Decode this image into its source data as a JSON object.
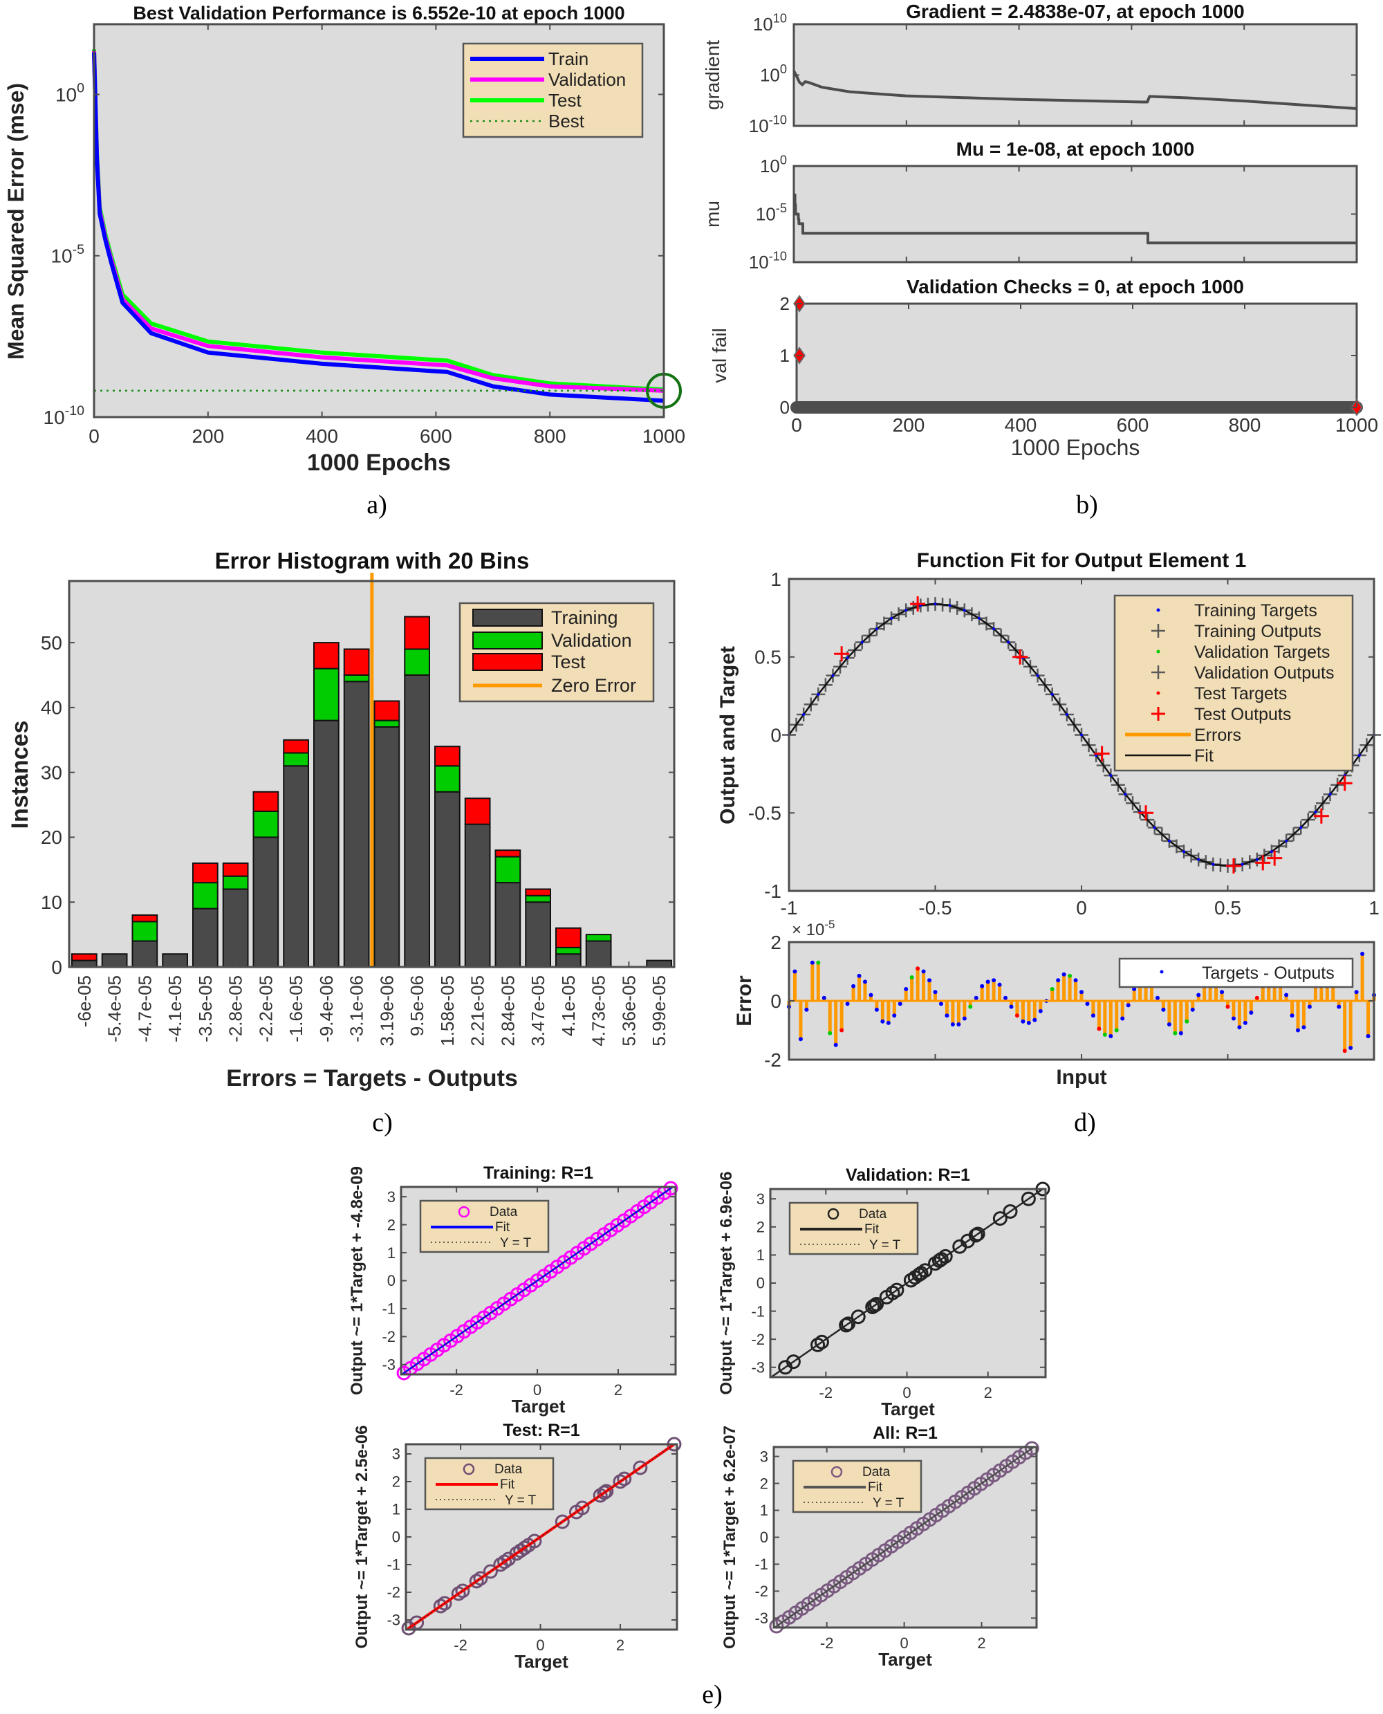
{
  "panel_labels": {
    "a": "a)",
    "b": "b)",
    "c": "c)",
    "d": "d)",
    "e": "e)"
  },
  "colors": {
    "axes_background": "#dcdcdc",
    "legend_background": "#f2deb6",
    "train": "#0000ff",
    "validation": "#ff00ff",
    "test": "#00ff00",
    "best": "#1a8c1a",
    "bar_training": "#4a4a4a",
    "bar_validation": "#00cc00",
    "bar_test": "#ff0000",
    "zero_error": "#ff9900",
    "marker_red": "#ff0000"
  },
  "chart_data": [
    {
      "id": "performance",
      "type": "line",
      "title": "Best Validation Performance is 6.552e-10 at epoch 1000",
      "xlabel": "1000 Epochs",
      "ylabel": "Mean Squared Error  (mse)",
      "yscale": "log",
      "xlim": [
        0,
        1000
      ],
      "ylim": [
        1e-10,
        150
      ],
      "grid": false,
      "xticks": [
        0,
        200,
        400,
        600,
        800,
        1000
      ],
      "yticks": [
        {
          "value": 1,
          "base": "10",
          "exp": "0"
        },
        {
          "value": 1e-05,
          "base": "10",
          "exp": "-5"
        },
        {
          "value": 1e-10,
          "base": "10",
          "exp": "-10"
        }
      ],
      "legend": {
        "position": "top-right",
        "entries": [
          "Train",
          "Validation",
          "Test",
          "Best"
        ]
      },
      "series": [
        {
          "name": "Train",
          "color": "#0000ff",
          "x": [
            0,
            5,
            10,
            20,
            30,
            50,
            100,
            200,
            400,
            620,
            700,
            800,
            1000
          ],
          "y": [
            20,
            0.01,
            0.0002,
            3e-05,
            6.3e-06,
            3.5e-07,
            4e-08,
            1e-08,
            4.5e-09,
            2.5e-09,
            9e-10,
            5e-10,
            3.2e-10
          ]
        },
        {
          "name": "Validation",
          "color": "#ff00ff",
          "x": [
            0,
            5,
            10,
            20,
            30,
            50,
            100,
            200,
            400,
            620,
            700,
            800,
            1000
          ],
          "y": [
            22,
            0.012,
            0.00025,
            3.5e-05,
            8e-06,
            4.5e-07,
            5.6e-08,
            1.6e-08,
            7.1e-09,
            4e-09,
            1.6e-09,
            9e-10,
            6.552e-10
          ]
        },
        {
          "name": "Test",
          "color": "#00ff00",
          "x": [
            0,
            5,
            10,
            20,
            30,
            50,
            100,
            200,
            400,
            620,
            700,
            800,
            1000
          ],
          "y": [
            25,
            0.016,
            0.00032,
            4.5e-05,
            1e-05,
            6.3e-07,
            8e-08,
            2.2e-08,
            1e-08,
            5.6e-09,
            2e-09,
            1.1e-09,
            7.1e-10
          ]
        }
      ],
      "best": {
        "name": "Best",
        "epoch": 1000,
        "value": 6.552e-10
      }
    },
    {
      "id": "gradient",
      "type": "line",
      "title": "Gradient = 2.4838e-07, at epoch 1000",
      "ylabel": "gradient",
      "yscale": "log",
      "xlim": [
        0,
        1000
      ],
      "ylim": [
        1e-10,
        10000000000.0
      ],
      "xticks": [
        0,
        200,
        400,
        600,
        800,
        1000
      ],
      "yticks": [
        {
          "value": 10000000000.0,
          "base": "10",
          "exp": "10"
        },
        {
          "value": 1,
          "base": "10",
          "exp": "0"
        },
        {
          "value": 1e-10,
          "base": "10",
          "exp": "-10"
        }
      ],
      "series": [
        {
          "x": [
            0,
            3,
            6,
            10,
            15,
            20,
            25,
            50,
            100,
            200,
            400,
            620,
            628,
            632,
            700,
            800,
            1000
          ],
          "y": [
            6.3,
            1.6,
            0.32,
            0.04,
            0.0126,
            0.05,
            0.04,
            0.004,
            0.0005,
            8e-05,
            1.6e-05,
            5e-06,
            5e-06,
            6.3e-05,
            3.2e-05,
            8e-06,
            2.4838e-07
          ]
        }
      ]
    },
    {
      "id": "mu",
      "type": "line",
      "title": "Mu = 1e-08, at epoch 1000",
      "ylabel": "mu",
      "yscale": "log",
      "xlim": [
        0,
        1000
      ],
      "ylim": [
        1e-10,
        1
      ],
      "xticks": [
        0,
        200,
        400,
        600,
        800,
        1000
      ],
      "yticks": [
        {
          "value": 1,
          "base": "10",
          "exp": "0"
        },
        {
          "value": 1e-05,
          "base": "10",
          "exp": "-5"
        },
        {
          "value": 1e-10,
          "base": "10",
          "exp": "-10"
        }
      ],
      "series": [
        {
          "x": [
            0,
            2,
            3,
            5,
            6,
            8,
            9,
            15,
            16,
            628,
            629,
            1000
          ],
          "y": [
            0.001,
            0.0001,
            1e-05,
            1e-05,
            1e-05,
            3e-06,
            1e-06,
            1e-06,
            1e-07,
            1e-07,
            1e-08,
            1e-08
          ]
        }
      ]
    },
    {
      "id": "validation_checks",
      "type": "scatter",
      "title": "Validation Checks = 0, at epoch 1000",
      "xlabel": "1000 Epochs",
      "ylabel": "val fail",
      "xlim": [
        0,
        1000
      ],
      "ylim": [
        0,
        2
      ],
      "xticks": [
        0,
        200,
        400,
        600,
        800,
        1000
      ],
      "yticks": [
        0,
        1,
        2
      ],
      "baseline": {
        "from_epoch": 0,
        "to_epoch": 1000,
        "value": 0
      },
      "markers": [
        {
          "epoch": 5,
          "value": 2
        },
        {
          "epoch": 5,
          "value": 1
        },
        {
          "epoch": 1000,
          "value": 0
        }
      ]
    },
    {
      "id": "error_histogram",
      "type": "bar",
      "stacked": true,
      "title": "Error Histogram with 20 Bins",
      "xlabel": "Errors = Targets - Outputs",
      "ylabel": "Instances",
      "ylim": [
        0,
        59.5
      ],
      "yticks": [
        0,
        10,
        20,
        30,
        40,
        50
      ],
      "categories": [
        "-6e-05",
        "-5.4e-05",
        "-4.7e-05",
        "-4.1e-05",
        "-3.5e-05",
        "-2.8e-05",
        "-2.2e-05",
        "-1.6e-05",
        "-9.4e-06",
        "-3.1e-06",
        "3.19e-06",
        "9.5e-06",
        "1.58e-05",
        "2.21e-05",
        "2.84e-05",
        "3.47e-05",
        "4.1e-05",
        "4.73e-05",
        "5.36e-05",
        "5.99e-05"
      ],
      "bin_centers_range": [
        -6e-05,
        5.99e-05
      ],
      "series": [
        {
          "name": "Training",
          "color": "#4a4a4a",
          "values": [
            1,
            2,
            4,
            2,
            9,
            12,
            20,
            31,
            38,
            44,
            37,
            45,
            27,
            22,
            13,
            10,
            2,
            4,
            0,
            1
          ]
        },
        {
          "name": "Validation",
          "color": "#00cc00",
          "values": [
            0,
            0,
            3,
            0,
            4,
            2,
            4,
            2,
            8,
            1,
            1,
            4,
            4,
            0,
            4,
            1,
            1,
            1,
            0,
            0
          ]
        },
        {
          "name": "Test",
          "color": "#ff0000",
          "values": [
            1,
            0,
            1,
            0,
            3,
            2,
            3,
            2,
            4,
            4,
            3,
            5,
            3,
            4,
            1,
            1,
            3,
            0,
            0,
            0
          ]
        }
      ],
      "zero_error": {
        "name": "Zero Error",
        "value": 0
      },
      "legend": {
        "position": "top-right",
        "entries": [
          "Training",
          "Validation",
          "Test",
          "Zero Error"
        ]
      }
    },
    {
      "id": "function_fit",
      "type": "line",
      "title": "Function Fit for Output Element 1",
      "ylabel": "Output and Target",
      "xlim": [
        -1,
        1
      ],
      "ylim": [
        -1,
        1
      ],
      "xticks": [
        -1,
        -0.5,
        0,
        0.5,
        1
      ],
      "yticks": [
        -1,
        -0.5,
        0,
        0.5,
        1
      ],
      "fit": {
        "x": [
          -1,
          -0.95,
          -0.9,
          -0.85,
          -0.8,
          -0.75,
          -0.7,
          -0.65,
          -0.6,
          -0.55,
          -0.5,
          -0.45,
          -0.4,
          -0.35,
          -0.3,
          -0.25,
          -0.2,
          -0.15,
          -0.1,
          -0.05,
          0,
          0.05,
          0.1,
          0.15,
          0.2,
          0.25,
          0.3,
          0.35,
          0.4,
          0.45,
          0.5,
          0.55,
          0.6,
          0.65,
          0.7,
          0.75,
          0.8,
          0.85,
          0.9,
          0.95,
          1
        ],
        "y": [
          0,
          0.131,
          0.26,
          0.381,
          0.494,
          0.594,
          0.68,
          0.748,
          0.799,
          0.83,
          0.84,
          0.83,
          0.799,
          0.748,
          0.68,
          0.594,
          0.494,
          0.381,
          0.26,
          0.131,
          0,
          -0.131,
          -0.26,
          -0.381,
          -0.494,
          -0.594,
          -0.68,
          -0.748,
          -0.799,
          -0.83,
          -0.84,
          -0.83,
          -0.799,
          -0.748,
          -0.68,
          -0.594,
          -0.494,
          -0.381,
          -0.26,
          -0.131,
          0
        ]
      },
      "test_outputs": {
        "x": [
          -0.82,
          -0.56,
          -0.21,
          0.07,
          0.22,
          0.52,
          0.62,
          0.66,
          0.82,
          0.9
        ],
        "y": [
          0.52,
          0.84,
          0.5,
          -0.12,
          -0.5,
          -0.84,
          -0.82,
          -0.79,
          -0.52,
          -0.31
        ]
      },
      "legend": {
        "position": "top-right",
        "entries": [
          "Training Targets",
          "Training Outputs",
          "Validation Targets",
          "Validation Outputs",
          "Test Targets",
          "Test Outputs",
          "Errors",
          "Fit"
        ]
      }
    },
    {
      "id": "fit_error",
      "type": "bar",
      "xlabel": "Input",
      "ylabel": "Error",
      "exponent_prefix": "× 10",
      "exponent": "-5",
      "xlim": [
        -1,
        1
      ],
      "ylim": [
        -2,
        2
      ],
      "yticks": [
        -2,
        0,
        2
      ],
      "values_e5": [
        -0.2,
        1.0,
        -1.3,
        -0.3,
        1.3,
        1.3,
        0.1,
        -1.1,
        -1.5,
        -1.0,
        -0.1,
        0.5,
        0.85,
        0.65,
        0.2,
        -0.3,
        -0.7,
        -0.75,
        -0.5,
        -0.1,
        0.4,
        0.8,
        1.1,
        1.0,
        0.7,
        0.3,
        -0.1,
        -0.5,
        -0.8,
        -0.8,
        -0.6,
        -0.2,
        0.1,
        0.5,
        0.65,
        0.7,
        0.55,
        0.1,
        -0.2,
        -0.5,
        -0.7,
        -0.75,
        -0.65,
        -0.35,
        0.0,
        0.4,
        0.7,
        0.9,
        0.85,
        0.7,
        0.3,
        -0.1,
        -0.5,
        -0.95,
        -1.15,
        -1.2,
        -1.0,
        -0.6,
        -0.15,
        0.4,
        0.6,
        0.6,
        0.6,
        0.1,
        -0.3,
        -0.8,
        -1.1,
        -1.1,
        -0.7,
        -0.3,
        0.2,
        0.5,
        0.5,
        0.5,
        0.3,
        -0.2,
        -0.6,
        -0.9,
        -0.75,
        -0.4,
        0.1,
        0.5,
        0.5,
        0.5,
        0.5,
        0.2,
        -0.5,
        -1.0,
        -0.9,
        -0.2,
        0.5,
        0.5,
        0.5,
        0.5,
        -0.2,
        -1.7,
        -1.6,
        0.3,
        1.6,
        -1.2,
        0.2
      ],
      "validation_indices": [
        5,
        7,
        21,
        31,
        45,
        48,
        54,
        56,
        66,
        68
      ],
      "test_indices": [
        9,
        22,
        39,
        53,
        75,
        80,
        95
      ],
      "legend": {
        "position": "top-right",
        "entries": [
          "Targets - Outputs"
        ]
      }
    },
    {
      "id": "regression_training",
      "type": "scatter",
      "title": "Training: R=1",
      "xlabel": "Target",
      "ylabel": "Output ~= 1*Target + -4.8e-09",
      "marker_color": "#ff00ff",
      "fit_color": "#0000ff",
      "xlim": [
        -3.37,
        3.42
      ],
      "ylim": [
        -3.35,
        3.35
      ],
      "xticks": [
        -2,
        0,
        2
      ],
      "yticks": [
        -3,
        -2,
        -1,
        0,
        1,
        2,
        3
      ],
      "targets": [
        -3.3,
        -3.135,
        -2.97,
        -2.805,
        -2.64,
        -2.475,
        -2.31,
        -2.145,
        -1.98,
        -1.815,
        -1.65,
        -1.485,
        -1.32,
        -1.155,
        -0.99,
        -0.825,
        -0.66,
        -0.495,
        -0.33,
        -0.165,
        0,
        0.165,
        0.33,
        0.495,
        0.66,
        0.825,
        0.99,
        1.155,
        1.32,
        1.485,
        1.65,
        1.815,
        1.98,
        2.145,
        2.31,
        2.475,
        2.64,
        2.805,
        2.97,
        3.135,
        3.3
      ],
      "legend": {
        "entries": [
          "Data",
          "Fit",
          "Y = T"
        ]
      }
    },
    {
      "id": "regression_validation",
      "type": "scatter",
      "title": "Validation: R=1",
      "xlabel": "Target",
      "ylabel": "Output ~= 1*Target + 6.9e-06",
      "marker_color": "#222222",
      "fit_color": "#222222",
      "xlim": [
        -3.37,
        3.42
      ],
      "ylim": [
        -3.35,
        3.35
      ],
      "xticks": [
        -2,
        0,
        2
      ],
      "yticks": [
        -3,
        -2,
        -1,
        0,
        1,
        2,
        3
      ],
      "targets": [
        -3.0,
        -2.8,
        -2.2,
        -2.1,
        -1.5,
        -1.45,
        -1.2,
        -0.85,
        -0.8,
        -0.75,
        -0.5,
        -0.35,
        -0.25,
        0.1,
        0.2,
        0.3,
        0.35,
        0.45,
        0.7,
        0.8,
        0.85,
        0.95,
        1.3,
        1.5,
        1.7,
        1.75,
        2.3,
        2.55,
        3.0,
        3.35
      ],
      "legend": {
        "entries": [
          "Data",
          "Fit",
          "Y = T"
        ]
      }
    },
    {
      "id": "regression_test",
      "type": "scatter",
      "title": "Test: R=1",
      "xlabel": "Target",
      "ylabel": "Output ~= 1*Target + 2.5e-06",
      "marker_color": "#6e4f73",
      "fit_color": "#ff0000",
      "xlim": [
        -3.37,
        3.42
      ],
      "ylim": [
        -3.35,
        3.35
      ],
      "xticks": [
        -2,
        0,
        2
      ],
      "yticks": [
        -3,
        -2,
        -1,
        0,
        1,
        2,
        3
      ],
      "targets": [
        -3.3,
        -3.1,
        -2.5,
        -2.4,
        -2.05,
        -1.95,
        -1.6,
        -1.5,
        -1.25,
        -1.0,
        -0.9,
        -0.8,
        -0.6,
        -0.5,
        -0.4,
        -0.3,
        -0.15,
        0.55,
        0.9,
        1.05,
        1.5,
        1.6,
        1.65,
        2.0,
        2.1,
        2.5,
        3.35
      ],
      "legend": {
        "entries": [
          "Data",
          "Fit",
          "Y = T"
        ]
      }
    },
    {
      "id": "regression_all",
      "type": "scatter",
      "title": "All: R=1",
      "xlabel": "Target",
      "ylabel": "Output ~= 1*Target + 6.2e-07",
      "marker_color": "#7a5a80",
      "fit_color": "#555555",
      "xlim": [
        -3.37,
        3.42
      ],
      "ylim": [
        -3.35,
        3.35
      ],
      "xticks": [
        -2,
        0,
        2
      ],
      "yticks": [
        -3,
        -2,
        -1,
        0,
        1,
        2,
        3
      ],
      "targets": [
        -3.3,
        -3.135,
        -2.97,
        -2.805,
        -2.64,
        -2.475,
        -2.31,
        -2.145,
        -1.98,
        -1.815,
        -1.65,
        -1.485,
        -1.32,
        -1.155,
        -0.99,
        -0.825,
        -0.66,
        -0.495,
        -0.33,
        -0.165,
        0,
        0.165,
        0.33,
        0.495,
        0.66,
        0.825,
        0.99,
        1.155,
        1.32,
        1.485,
        1.65,
        1.815,
        1.98,
        2.145,
        2.31,
        2.475,
        2.64,
        2.805,
        2.97,
        3.135,
        3.3
      ],
      "legend": {
        "entries": [
          "Data",
          "Fit",
          "Y = T"
        ]
      }
    }
  ]
}
